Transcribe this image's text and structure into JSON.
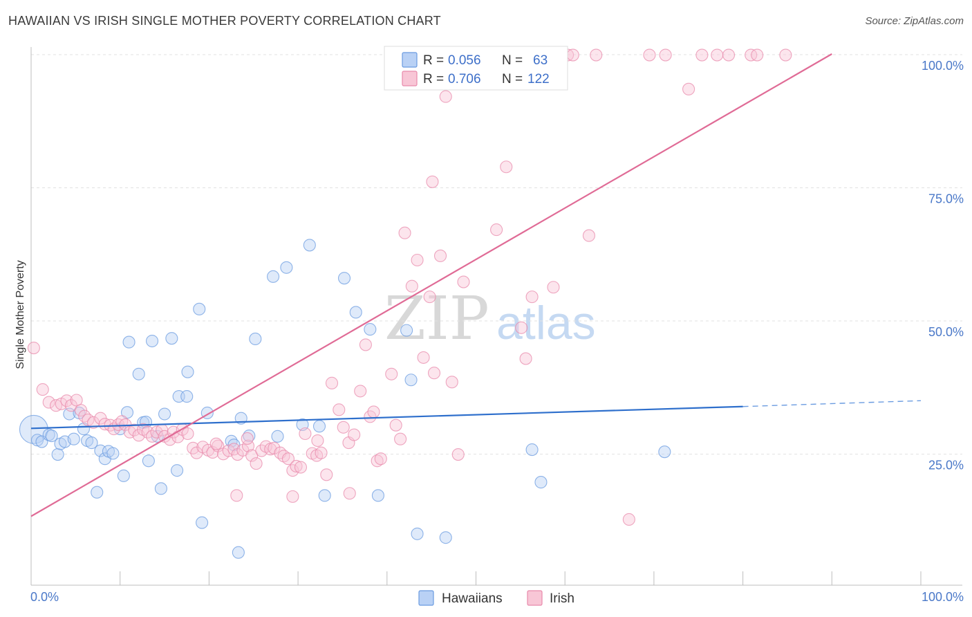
{
  "title": "HAWAIIAN VS IRISH SINGLE MOTHER POVERTY CORRELATION CHART",
  "source": "Source: ZipAtlas.com",
  "watermark": {
    "zip": "ZIP",
    "atlas": "atlas"
  },
  "legend_stats": [
    {
      "r_label": "R =",
      "r_value": "0.056",
      "n_label": "N =",
      "n_value": "63",
      "color": "#6a9be0",
      "fill": "#b9d1f5"
    },
    {
      "r_label": "R =",
      "r_value": "0.706",
      "n_label": "N =",
      "n_value": "122",
      "color": "#e889ab",
      "fill": "#f8c6d6"
    }
  ],
  "chart_data": {
    "type": "scatter",
    "title": "HAWAIIAN VS IRISH SINGLE MOTHER POVERTY CORRELATION CHART",
    "xlabel": "",
    "ylabel": "Single Mother Poverty",
    "xlim": [
      0,
      100
    ],
    "ylim": [
      0,
      100
    ],
    "x_tick_labels": [
      "0.0%",
      "100.0%"
    ],
    "y_tick_labels": [
      "25.0%",
      "50.0%",
      "75.0%",
      "100.0%"
    ],
    "grid": true,
    "legend_position": "bottom-center",
    "series": [
      {
        "name": "Hawaiians",
        "color": "#6a9be0",
        "fill": "#b9d1f5",
        "trend": {
          "x": [
            0,
            80
          ],
          "y": [
            29.7,
            33.8
          ],
          "dashed_extension_to_x": 100,
          "dashed_extension_y": 34.9
        },
        "points": [
          [
            0.3,
            29.5,
            2.4
          ],
          [
            0.7,
            27.5,
            1
          ],
          [
            1.2,
            27.2,
            1
          ],
          [
            2,
            28.5,
            1
          ],
          [
            2.3,
            28.3,
            1
          ],
          [
            3,
            24.8,
            1
          ],
          [
            3.3,
            26.8,
            1
          ],
          [
            3.8,
            27.2,
            1
          ],
          [
            4.3,
            32.4,
            1
          ],
          [
            4.8,
            27.7,
            1
          ],
          [
            5.4,
            32.6,
            1
          ],
          [
            5.9,
            29.6,
            1
          ],
          [
            6.3,
            27.4,
            1
          ],
          [
            6.8,
            27.0,
            1
          ],
          [
            7.4,
            17.7,
            1
          ],
          [
            7.8,
            25.5,
            1
          ],
          [
            8.3,
            24.0,
            1
          ],
          [
            8.7,
            25.4,
            1
          ],
          [
            9.2,
            25.0,
            1
          ],
          [
            10.0,
            29.6,
            1
          ],
          [
            10.4,
            20.8,
            1
          ],
          [
            10.8,
            32.7,
            1
          ],
          [
            11.0,
            45.9,
            1
          ],
          [
            12.1,
            39.9,
            1
          ],
          [
            12.6,
            30.8,
            1
          ],
          [
            12.9,
            30.9,
            1
          ],
          [
            13.2,
            23.6,
            1
          ],
          [
            13.6,
            46.1,
            1
          ],
          [
            14.2,
            28.2,
            1
          ],
          [
            14.6,
            18.4,
            1
          ],
          [
            15.0,
            32.4,
            1
          ],
          [
            15.8,
            46.6,
            1
          ],
          [
            16.4,
            21.8,
            1
          ],
          [
            16.6,
            35.7,
            1
          ],
          [
            17.5,
            35.7,
            1
          ],
          [
            17.6,
            40.3,
            1
          ],
          [
            18.9,
            52.1,
            1
          ],
          [
            19.2,
            12.0,
            1
          ],
          [
            19.8,
            32.6,
            1
          ],
          [
            22.5,
            27.3,
            1
          ],
          [
            22.8,
            26.6,
            1
          ],
          [
            23.3,
            6.4,
            1
          ],
          [
            23.6,
            31.6,
            1
          ],
          [
            24.5,
            28.3,
            1
          ],
          [
            25.2,
            46.5,
            1
          ],
          [
            27.2,
            58.2,
            1
          ],
          [
            27.7,
            28.2,
            1
          ],
          [
            28.7,
            59.9,
            1
          ],
          [
            30.5,
            30.4,
            1
          ],
          [
            31.3,
            64.1,
            1
          ],
          [
            32.4,
            30.1,
            1
          ],
          [
            33.0,
            17.1,
            1
          ],
          [
            35.2,
            57.9,
            1
          ],
          [
            36.5,
            51.5,
            1
          ],
          [
            38.1,
            48.3,
            1
          ],
          [
            39.0,
            17.1,
            1
          ],
          [
            42.2,
            48.1,
            1
          ],
          [
            42.7,
            38.8,
            1
          ],
          [
            43.4,
            9.9,
            1
          ],
          [
            46.6,
            9.2,
            1
          ],
          [
            56.3,
            25.7,
            1
          ],
          [
            57.3,
            19.6,
            1
          ],
          [
            71.2,
            25.3,
            1
          ]
        ]
      },
      {
        "name": "Irish",
        "color": "#e889ab",
        "fill": "#f8c6d6",
        "trend": {
          "x": [
            0,
            90
          ],
          "y": [
            13.2,
            100
          ]
        },
        "points": [
          [
            0.3,
            44.8,
            1
          ],
          [
            1.3,
            37.0,
            1
          ],
          [
            2.0,
            34.6,
            1
          ],
          [
            2.8,
            34.0,
            1
          ],
          [
            3.4,
            34.3,
            1
          ],
          [
            4.0,
            34.9,
            1
          ],
          [
            4.5,
            34.0,
            1
          ],
          [
            5.1,
            35.0,
            1
          ],
          [
            5.6,
            33.1,
            1
          ],
          [
            6.0,
            32.0,
            1
          ],
          [
            6.4,
            31.3,
            1
          ],
          [
            7.0,
            30.8,
            1
          ],
          [
            7.8,
            31.6,
            1
          ],
          [
            8.3,
            30.5,
            1
          ],
          [
            8.9,
            30.3,
            1
          ],
          [
            9.3,
            29.6,
            1
          ],
          [
            9.8,
            30.4,
            1
          ],
          [
            10.2,
            31.0,
            1
          ],
          [
            10.6,
            30.4,
            1
          ],
          [
            11.1,
            29.0,
            1
          ],
          [
            11.6,
            29.4,
            1
          ],
          [
            12.1,
            28.4,
            1
          ],
          [
            12.6,
            29.5,
            1
          ],
          [
            13.1,
            29.0,
            1
          ],
          [
            13.6,
            28.2,
            1
          ],
          [
            14.1,
            29.0,
            1
          ],
          [
            14.7,
            29.4,
            1
          ],
          [
            15.0,
            28.2,
            1
          ],
          [
            15.6,
            27.6,
            1
          ],
          [
            16.0,
            29.0,
            1
          ],
          [
            16.5,
            28.1,
            1
          ],
          [
            17.0,
            29.5,
            1
          ],
          [
            17.6,
            28.7,
            1
          ],
          [
            18.2,
            26.0,
            1
          ],
          [
            18.6,
            25.1,
            1
          ],
          [
            19.3,
            26.2,
            1
          ],
          [
            19.9,
            25.6,
            1
          ],
          [
            20.4,
            25.2,
            1
          ],
          [
            21.0,
            26.4,
            1
          ],
          [
            21.6,
            24.9,
            1
          ],
          [
            22.2,
            25.5,
            1
          ],
          [
            22.8,
            25.8,
            1
          ],
          [
            23.2,
            24.8,
            1
          ],
          [
            23.8,
            25.6,
            1
          ],
          [
            24.4,
            26.4,
            1
          ],
          [
            24.8,
            24.6,
            1
          ],
          [
            25.3,
            23.1,
            1
          ],
          [
            25.9,
            25.5,
            1
          ],
          [
            26.4,
            26.3,
            1
          ],
          [
            26.9,
            25.8,
            1
          ],
          [
            27.3,
            26.0,
            1
          ],
          [
            28.0,
            25.1,
            1
          ],
          [
            28.4,
            24.5,
            1
          ],
          [
            28.9,
            24.0,
            1
          ],
          [
            29.4,
            21.8,
            1
          ],
          [
            29.8,
            22.6,
            1
          ],
          [
            30.3,
            22.4,
            1
          ],
          [
            30.8,
            28.7,
            1
          ],
          [
            31.6,
            25.0,
            1
          ],
          [
            32.1,
            24.6,
            1
          ],
          [
            32.6,
            25.1,
            1
          ],
          [
            33.2,
            21.0,
            1
          ],
          [
            33.8,
            38.2,
            1
          ],
          [
            34.6,
            33.2,
            1
          ],
          [
            35.1,
            29.9,
            1
          ],
          [
            35.7,
            27.0,
            1
          ],
          [
            36.3,
            28.5,
            1
          ],
          [
            37.0,
            36.7,
            1
          ],
          [
            37.6,
            45.4,
            1
          ],
          [
            38.1,
            31.9,
            1
          ],
          [
            38.9,
            23.6,
            1
          ],
          [
            39.3,
            24.0,
            1
          ],
          [
            40.5,
            39.9,
            1
          ],
          [
            41.0,
            30.3,
            1
          ],
          [
            41.5,
            27.7,
            1
          ],
          [
            42.0,
            66.4,
            1
          ],
          [
            42.8,
            56.4,
            1
          ],
          [
            43.4,
            61.3,
            1
          ],
          [
            44.1,
            43.0,
            1
          ],
          [
            44.8,
            54.4,
            1
          ],
          [
            45.3,
            40.1,
            1
          ],
          [
            46.0,
            62.1,
            1
          ],
          [
            46.6,
            92.0,
            1
          ],
          [
            47.3,
            38.4,
            1
          ],
          [
            48.0,
            24.8,
            1
          ],
          [
            48.6,
            57.2,
            1
          ],
          [
            49.4,
            99.8,
            1
          ],
          [
            50.2,
            99.8,
            1
          ],
          [
            50.9,
            99.8,
            1
          ],
          [
            51.6,
            99.8,
            1
          ],
          [
            52.3,
            67.0,
            1
          ],
          [
            53.4,
            78.8,
            1
          ],
          [
            55.1,
            48.6,
            1
          ],
          [
            55.6,
            42.8,
            1
          ],
          [
            56.3,
            54.4,
            1
          ],
          [
            57.3,
            99.8,
            1
          ],
          [
            58.7,
            56.2,
            1
          ],
          [
            59.3,
            99.8,
            1
          ],
          [
            60.3,
            99.8,
            1
          ],
          [
            60.9,
            99.8,
            1
          ],
          [
            62.7,
            65.9,
            1
          ],
          [
            63.5,
            99.8,
            1
          ],
          [
            67.2,
            12.6,
            1
          ],
          [
            69.5,
            99.8,
            1
          ],
          [
            71.3,
            99.8,
            1
          ],
          [
            73.9,
            93.4,
            1
          ],
          [
            75.4,
            99.8,
            1
          ],
          [
            77.1,
            99.8,
            1
          ],
          [
            78.4,
            99.8,
            1
          ],
          [
            80.9,
            99.8,
            1
          ],
          [
            81.6,
            99.8,
            1
          ],
          [
            84.8,
            99.8,
            1
          ],
          [
            45.1,
            76.0,
            1
          ],
          [
            38.5,
            32.8,
            1
          ],
          [
            32.2,
            27.4,
            1
          ],
          [
            24.3,
            27.8,
            1
          ],
          [
            20.8,
            26.8,
            1
          ],
          [
            23.1,
            17.1,
            1
          ],
          [
            29.4,
            16.9,
            1
          ],
          [
            35.8,
            17.5,
            1
          ]
        ]
      }
    ]
  }
}
